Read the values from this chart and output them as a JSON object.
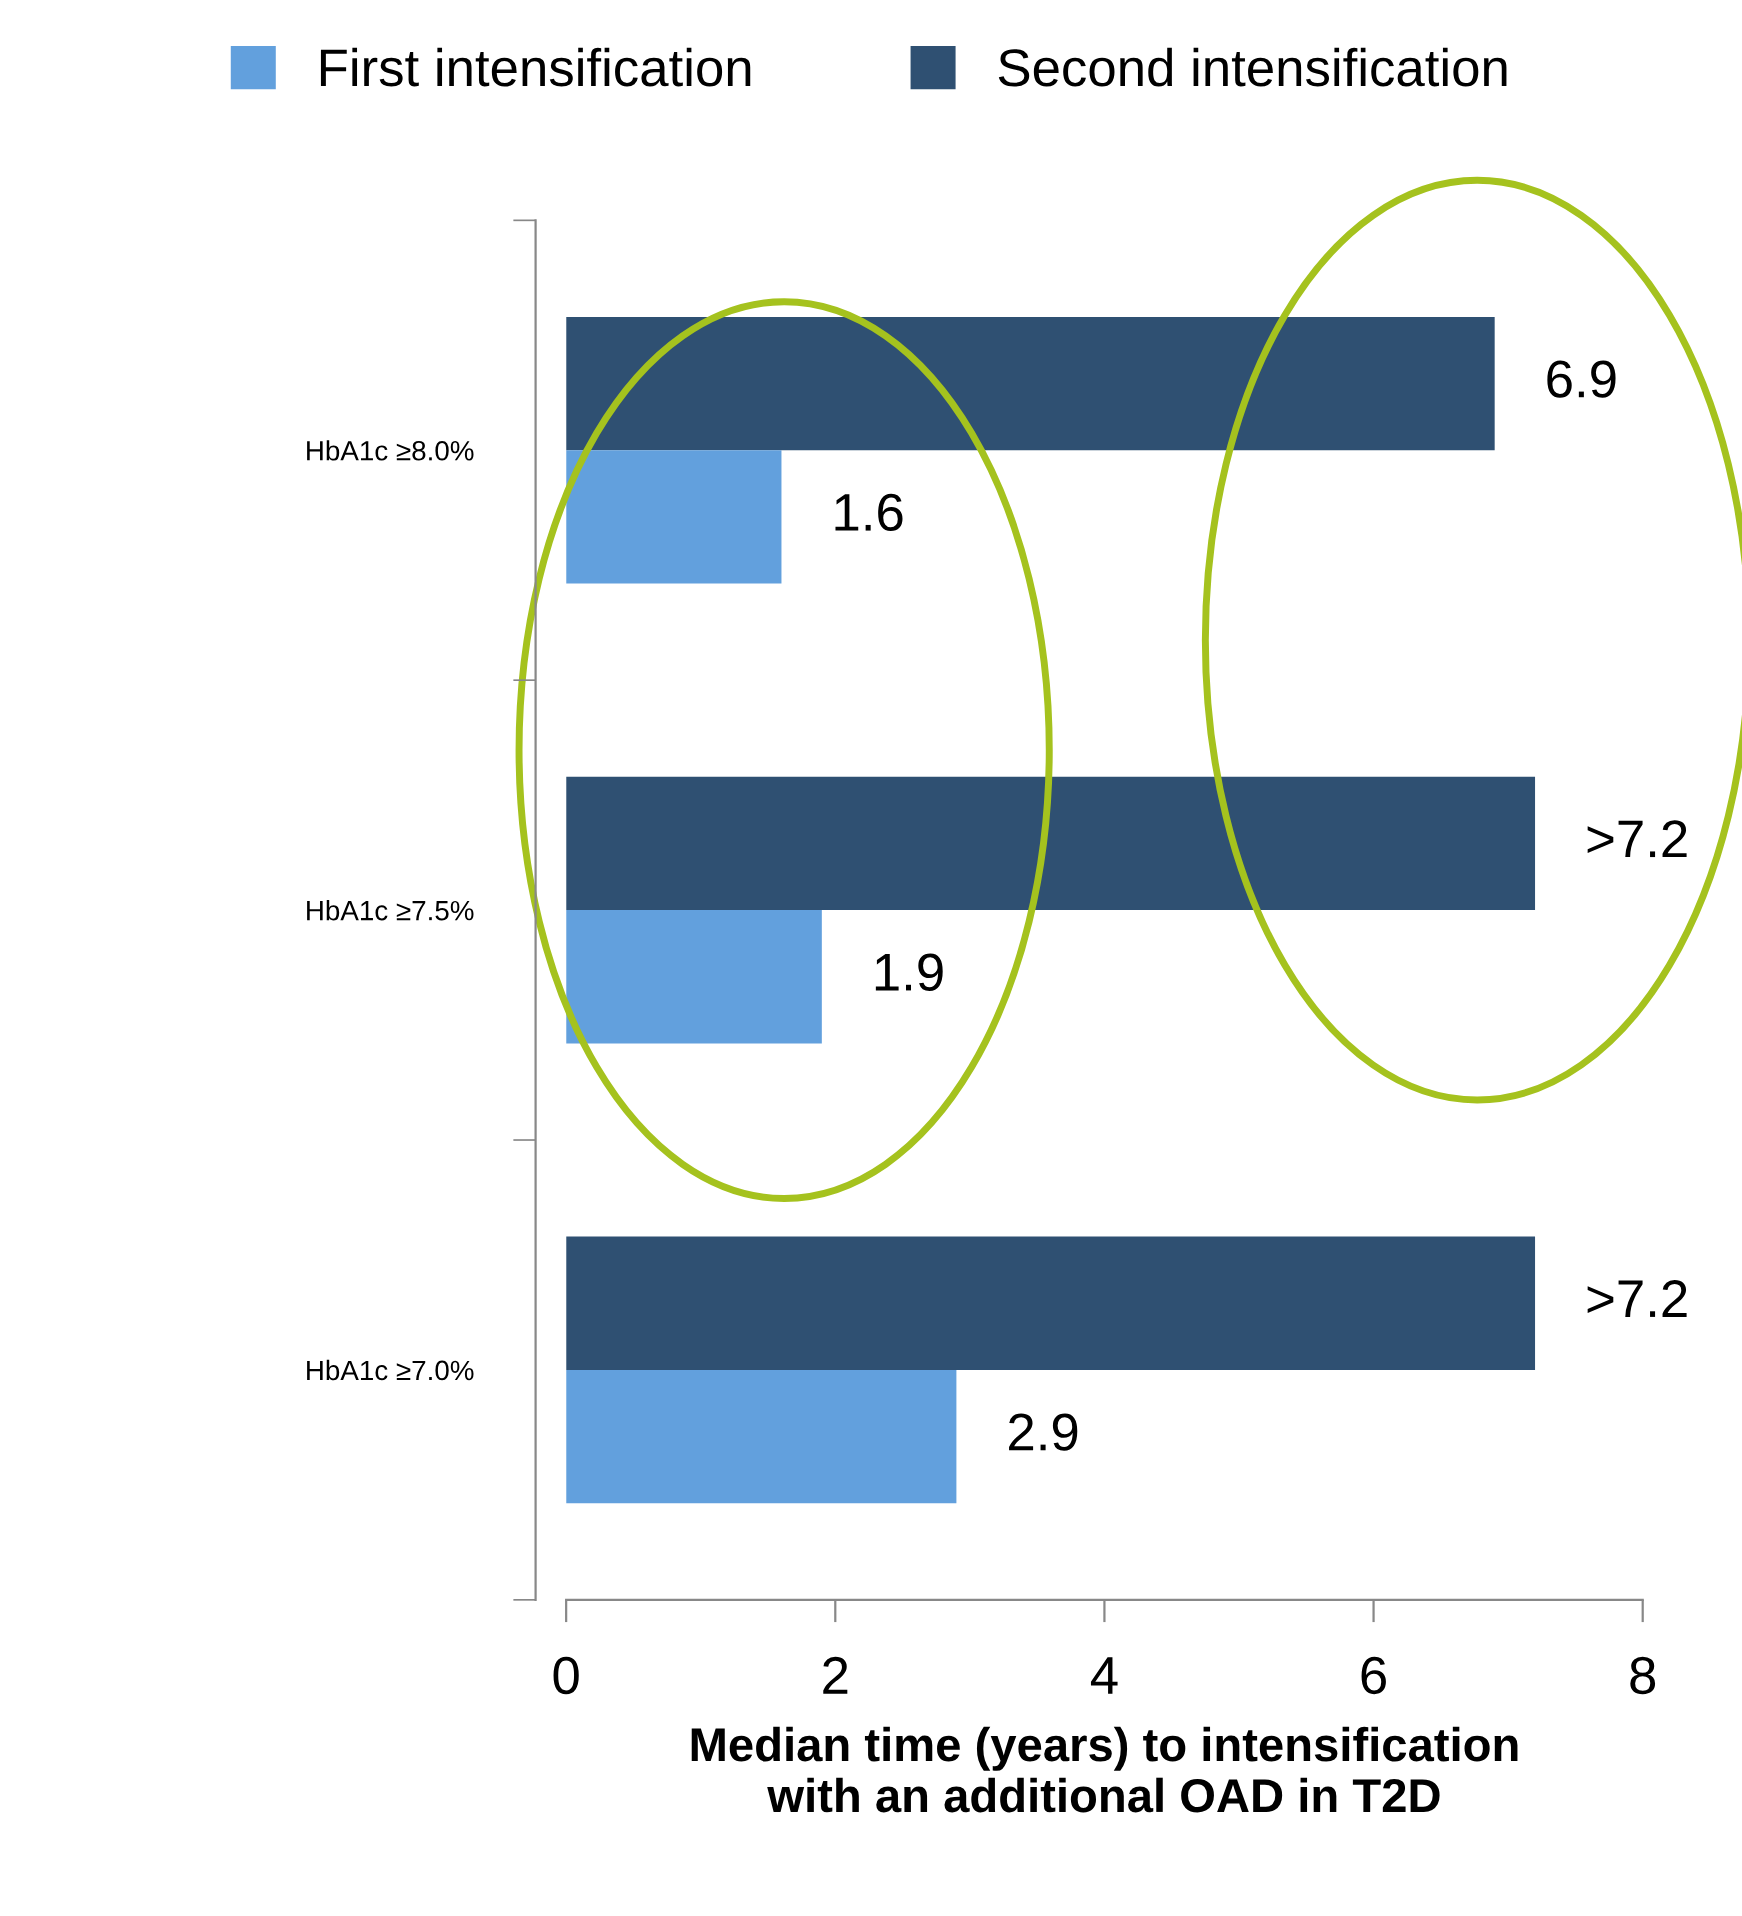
{
  "chart_data": {
    "type": "bar",
    "orientation": "horizontal",
    "categories": [
      "HbA1c ≥8.0%",
      "HbA1c ≥7.5%",
      "HbA1c ≥7.0%"
    ],
    "series": [
      {
        "name": "Second intensification",
        "color": "#2f5072",
        "values": [
          6.9,
          7.2,
          7.2
        ],
        "value_labels": [
          "6.9",
          ">7.2",
          ">7.2"
        ]
      },
      {
        "name": "First intensification",
        "color": "#62a0dd",
        "values": [
          1.6,
          1.9,
          2.9
        ],
        "value_labels": [
          "1.6",
          "1.9",
          "2.9"
        ]
      }
    ],
    "xlim": [
      0,
      8
    ],
    "xticks": [
      0,
      2,
      4,
      6,
      8
    ],
    "xlabel": "Median time (years) to intensification\nwith an additional OAD in T2D",
    "grid": false,
    "legend": "top"
  }
}
